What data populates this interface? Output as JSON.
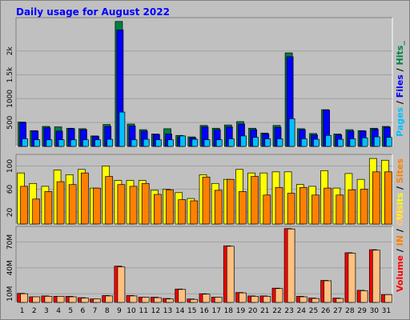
{
  "title": "Daily usage for August 2022",
  "days": [
    "1",
    "2",
    "3",
    "4",
    "5",
    "6",
    "7",
    "8",
    "9",
    "10",
    "11",
    "12",
    "13",
    "14",
    "15",
    "16",
    "17",
    "18",
    "19",
    "20",
    "21",
    "22",
    "23",
    "24",
    "25",
    "26",
    "27",
    "28",
    "29",
    "30",
    "31"
  ],
  "weekend_days": [
    "6",
    "7",
    "13",
    "14",
    "20",
    "21",
    "27",
    "28"
  ],
  "colors": {
    "hits": "#008040",
    "files": "#0000ff",
    "pages": "#00c0ff",
    "visits": "#ffff00",
    "sites": "#ff8000",
    "volume": "#ff0000",
    "volume_in": "#ff8000",
    "volume_out": "#ffc080",
    "weekday_label": "#000000",
    "weekend_label": "#008000",
    "plot_bg": "#c0c0c0",
    "background": "#c0c0c0"
  },
  "chart_data": [
    {
      "type": "bar",
      "name": "hits-files-pages",
      "categories": [
        "1",
        "2",
        "3",
        "4",
        "5",
        "6",
        "7",
        "8",
        "9",
        "10",
        "11",
        "12",
        "13",
        "14",
        "15",
        "16",
        "17",
        "18",
        "19",
        "20",
        "21",
        "22",
        "23",
        "24",
        "25",
        "26",
        "27",
        "28",
        "29",
        "30",
        "31"
      ],
      "series": [
        {
          "name": "Hits",
          "key": "hits",
          "values": [
            510,
            330,
            420,
            410,
            380,
            370,
            220,
            460,
            2620,
            470,
            350,
            260,
            370,
            230,
            200,
            440,
            380,
            450,
            520,
            380,
            280,
            440,
            1960,
            370,
            270,
            770,
            260,
            350,
            330,
            380,
            420
          ]
        },
        {
          "name": "Files",
          "key": "files",
          "values": [
            500,
            320,
            390,
            320,
            370,
            350,
            210,
            420,
            2440,
            430,
            320,
            250,
            260,
            200,
            180,
            410,
            350,
            410,
            470,
            350,
            260,
            400,
            1880,
            350,
            240,
            760,
            240,
            320,
            320,
            360,
            400
          ]
        },
        {
          "name": "Pages",
          "key": "pages",
          "values": [
            160,
            140,
            140,
            140,
            140,
            140,
            140,
            150,
            720,
            140,
            150,
            140,
            140,
            220,
            150,
            140,
            140,
            160,
            220,
            190,
            160,
            160,
            580,
            160,
            150,
            230,
            150,
            160,
            180,
            200,
            190
          ]
        }
      ],
      "legend": [
        "Pages",
        "/",
        "Files",
        "/",
        "Hits_"
      ],
      "yticks": [
        "500",
        "1000",
        "1.5k",
        "2k"
      ],
      "ylim": [
        0,
        2700
      ]
    },
    {
      "type": "bar",
      "name": "visits-sites",
      "categories": [
        "1",
        "2",
        "3",
        "4",
        "5",
        "6",
        "7",
        "8",
        "9",
        "10",
        "11",
        "12",
        "13",
        "14",
        "15",
        "16",
        "17",
        "18",
        "19",
        "20",
        "21",
        "22",
        "23",
        "24",
        "25",
        "26",
        "27",
        "28",
        "29",
        "30",
        "31"
      ],
      "series": [
        {
          "name": "Visits",
          "key": "visits",
          "values": [
            88,
            70,
            65,
            93,
            85,
            94,
            62,
            100,
            75,
            75,
            75,
            58,
            60,
            54,
            44,
            85,
            70,
            77,
            94,
            88,
            88,
            90,
            90,
            68,
            65,
            92,
            62,
            87,
            77,
            113,
            110
          ]
        },
        {
          "name": "Sites",
          "key": "sites",
          "values": [
            65,
            43,
            56,
            73,
            68,
            88,
            62,
            82,
            68,
            65,
            70,
            51,
            59,
            42,
            40,
            81,
            58,
            77,
            56,
            82,
            50,
            63,
            53,
            63,
            50,
            62,
            50,
            59,
            60,
            90,
            90
          ]
        }
      ],
      "legend": [
        "Visits",
        "/",
        "Sites"
      ],
      "yticks": [
        "20",
        "60",
        "100"
      ],
      "ylim": [
        0,
        120
      ]
    },
    {
      "type": "bar",
      "name": "volume",
      "categories": [
        "1",
        "2",
        "3",
        "4",
        "5",
        "6",
        "7",
        "8",
        "9",
        "10",
        "11",
        "12",
        "13",
        "14",
        "15",
        "16",
        "17",
        "18",
        "19",
        "20",
        "21",
        "22",
        "23",
        "24",
        "25",
        "26",
        "27",
        "28",
        "29",
        "30",
        "31"
      ],
      "series": [
        {
          "name": "Volume",
          "key": "volume",
          "values": [
            10.5,
            6.5,
            7.5,
            7,
            7,
            5.5,
            4,
            8,
            42,
            8,
            6,
            6,
            4.5,
            15.5,
            4,
            10,
            6,
            65.5,
            11.5,
            7.5,
            7.5,
            16.5,
            85.5,
            7,
            5,
            25.5,
            5,
            57.5,
            14,
            61,
            9
          ]
        },
        {
          "name": "OUT",
          "key": "volume_out",
          "values": [
            10,
            6.5,
            7,
            7,
            6.5,
            5,
            4,
            7.5,
            41,
            7.5,
            6,
            5.5,
            4,
            15,
            3.5,
            9.5,
            6,
            65,
            11,
            7,
            7,
            16,
            85,
            6.5,
            4.5,
            25,
            4.5,
            57,
            13.5,
            60.5,
            9
          ]
        }
      ],
      "legend": [
        "Volume",
        "/",
        "IN",
        "/",
        "OUT"
      ],
      "yticks": [
        "10M",
        "40M",
        "70M"
      ],
      "ylim": [
        0,
        88
      ]
    }
  ]
}
